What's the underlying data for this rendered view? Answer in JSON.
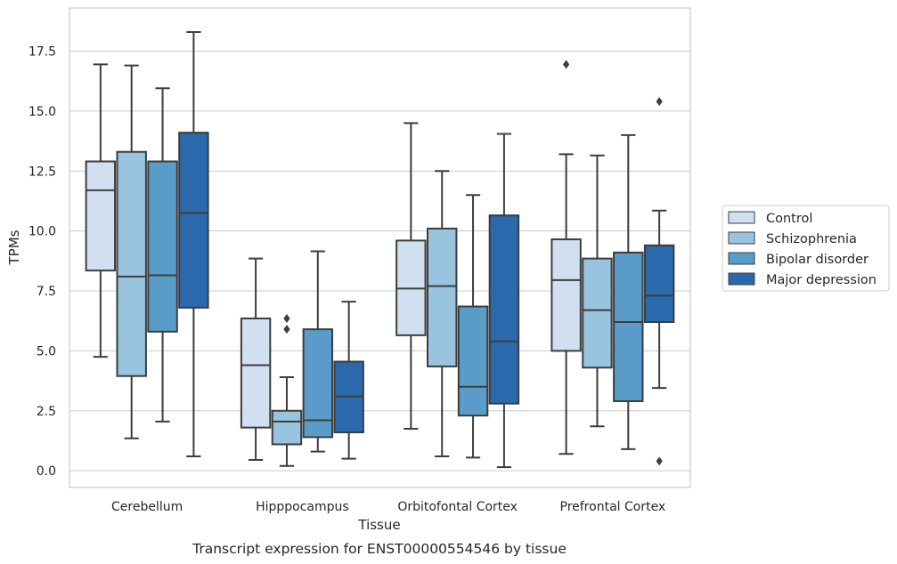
{
  "chart_data": {
    "type": "box",
    "caption": "Transcript expression for ENST00000554546 by tissue",
    "xlabel": "Tissue",
    "ylabel": "TPMs",
    "ylim": [
      -0.7,
      19.3
    ],
    "yticks": [
      "0.0",
      "2.5",
      "5.0",
      "7.5",
      "10.0",
      "12.5",
      "15.0",
      "17.5"
    ],
    "grid": true,
    "legend_position": "right",
    "categories": [
      "Cerebellum",
      "Hipppocampus",
      "Orbitofontal Cortex",
      "Prefrontal Cortex"
    ],
    "series": [
      {
        "name": "Control",
        "color": "#d0e0f1",
        "boxes": [
          {
            "whislo": 4.75,
            "q1": 8.35,
            "med": 11.7,
            "q3": 12.9,
            "whishi": 16.95,
            "fliers": []
          },
          {
            "whislo": 0.45,
            "q1": 1.8,
            "med": 4.4,
            "q3": 6.35,
            "whishi": 8.85,
            "fliers": []
          },
          {
            "whislo": 1.75,
            "q1": 5.65,
            "med": 7.6,
            "q3": 9.6,
            "whishi": 14.5,
            "fliers": []
          },
          {
            "whislo": 0.7,
            "q1": 5.0,
            "med": 7.95,
            "q3": 9.65,
            "whishi": 13.2,
            "fliers": [
              16.95
            ]
          }
        ]
      },
      {
        "name": "Schizophrenia",
        "color": "#98c4df",
        "boxes": [
          {
            "whislo": 1.35,
            "q1": 3.95,
            "med": 8.1,
            "q3": 13.3,
            "whishi": 16.9,
            "fliers": []
          },
          {
            "whislo": 0.2,
            "q1": 1.1,
            "med": 2.05,
            "q3": 2.5,
            "whishi": 3.9,
            "fliers": [
              5.9,
              6.35
            ]
          },
          {
            "whislo": 0.6,
            "q1": 4.35,
            "med": 7.7,
            "q3": 10.1,
            "whishi": 12.5,
            "fliers": []
          },
          {
            "whislo": 1.85,
            "q1": 4.3,
            "med": 6.7,
            "q3": 8.85,
            "whishi": 13.15,
            "fliers": []
          }
        ]
      },
      {
        "name": "Bipolar disorder",
        "color": "#5a9cc9",
        "boxes": [
          {
            "whislo": 2.05,
            "q1": 5.8,
            "med": 8.15,
            "q3": 12.9,
            "whishi": 15.95,
            "fliers": []
          },
          {
            "whislo": 0.8,
            "q1": 1.4,
            "med": 2.1,
            "q3": 5.9,
            "whishi": 9.15,
            "fliers": []
          },
          {
            "whislo": 0.55,
            "q1": 2.3,
            "med": 3.5,
            "q3": 6.85,
            "whishi": 11.5,
            "fliers": []
          },
          {
            "whislo": 0.9,
            "q1": 2.9,
            "med": 6.2,
            "q3": 9.1,
            "whishi": 14.0,
            "fliers": []
          }
        ]
      },
      {
        "name": "Major depression",
        "color": "#2a69ac",
        "boxes": [
          {
            "whislo": 0.6,
            "q1": 6.8,
            "med": 10.75,
            "q3": 14.1,
            "whishi": 18.3,
            "fliers": []
          },
          {
            "whislo": 0.5,
            "q1": 1.6,
            "med": 3.1,
            "q3": 4.55,
            "whishi": 7.05,
            "fliers": []
          },
          {
            "whislo": 0.15,
            "q1": 2.8,
            "med": 5.4,
            "q3": 10.65,
            "whishi": 14.05,
            "fliers": []
          },
          {
            "whislo": 3.45,
            "q1": 6.2,
            "med": 7.3,
            "q3": 9.4,
            "whishi": 10.85,
            "fliers": [
              0.4,
              15.4
            ]
          }
        ]
      }
    ]
  }
}
